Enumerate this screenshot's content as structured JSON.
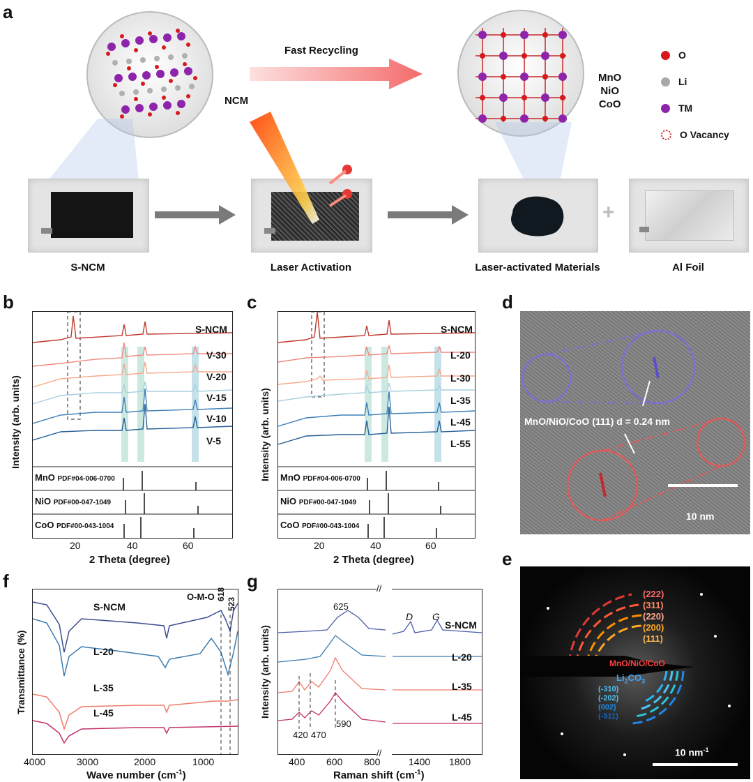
{
  "panel_a": {
    "label": "a",
    "ncm_label": "NCM",
    "fast_recycling": "Fast Recycling",
    "oxides": [
      "MnO",
      "NiO",
      "CoO"
    ],
    "legend": [
      {
        "label": "O",
        "color": "#d7191c"
      },
      {
        "label": "Li",
        "color": "#a8a8a8"
      },
      {
        "label": "TM",
        "color": "#8e24aa"
      },
      {
        "label": "O Vacancy",
        "color": "#c62828"
      }
    ],
    "steps": [
      "S-NCM",
      "Laser Activation",
      "Laser-activated Materials",
      "Al Foil"
    ]
  },
  "panel_b": {
    "label": "b",
    "ylabel": "Intensity (arb. units)",
    "xlabel": "2 Theta (degree)",
    "xticks": [
      "20",
      "40",
      "60"
    ],
    "series": [
      "S-NCM",
      "V-30",
      "V-20",
      "V-15",
      "V-10",
      "V-5"
    ],
    "refs": [
      {
        "name": "MnO",
        "pdf": "PDF#04-006-0700"
      },
      {
        "name": "NiO",
        "pdf": "PDF#00-047-1049"
      },
      {
        "name": "CoO",
        "pdf": "PDF#00-043-1004"
      }
    ]
  },
  "panel_c": {
    "label": "c",
    "ylabel": "Intensity (arb. units)",
    "xlabel": "2 Theta (degree)",
    "xticks": [
      "20",
      "40",
      "60"
    ],
    "series": [
      "S-NCM",
      "L-20",
      "L-30",
      "L-35",
      "L-45",
      "L-55"
    ],
    "refs": [
      {
        "name": "MnO",
        "pdf": "PDF#04-006-0700"
      },
      {
        "name": "NiO",
        "pdf": "PDF#00-047-1049"
      },
      {
        "name": "CoO",
        "pdf": "PDF#00-043-1004"
      }
    ]
  },
  "panel_d": {
    "label": "d",
    "annotation": "MnO/NiO/CoO  (111)  d = 0.24 nm",
    "scalebar": "10 nm"
  },
  "panel_e": {
    "label": "e",
    "rings_top": [
      "(222)",
      "(311)",
      "(220)",
      "(200)",
      "(111)"
    ],
    "phase": "MnO/NiO/CoO",
    "li2co3": "Li",
    "li2co3_sub": "2",
    "li2co3_end": "CO",
    "li2co3_sub2": "3",
    "rings_bottom": [
      "(-310)",
      "(-202)",
      "(002)",
      "(-511)"
    ],
    "scalebar": "10 nm",
    "scalebar_sup": "-1"
  },
  "panel_f": {
    "label": "f",
    "ylabel": "Transmittance (%)",
    "xlabel": "Wave number (cm",
    "xlabel_sup": "-1",
    "xlabel_end": ")",
    "xticks": [
      "4000",
      "3000",
      "2000",
      "1000"
    ],
    "series": [
      "S-NCM",
      "L-20",
      "L-35",
      "L-45"
    ],
    "annot": "O-M-O",
    "peaks": [
      "618",
      "523"
    ]
  },
  "panel_g": {
    "label": "g",
    "ylabel": "Intensity (arb. units)",
    "xlabel": "Raman shift (cm",
    "xlabel_sup": "-1",
    "xlabel_end": ")",
    "xticks": [
      "400",
      "600",
      "800",
      "1400",
      "1800"
    ],
    "series": [
      "S-NCM",
      "L-20",
      "L-35",
      "L-45"
    ],
    "peaks": [
      "625",
      "420",
      "470",
      "590"
    ],
    "bands": [
      "D",
      "G"
    ]
  },
  "chart_data": [
    {
      "type": "line",
      "panel": "b",
      "xlabel": "2 Theta (degree)",
      "ylabel": "Intensity (arb. units)",
      "series": [
        {
          "name": "S-NCM"
        },
        {
          "name": "V-30"
        },
        {
          "name": "V-20"
        },
        {
          "name": "V-15"
        },
        {
          "name": "V-10"
        },
        {
          "name": "V-5"
        }
      ],
      "reference_peaks_2theta": {
        "MnO": [
          35,
          41,
          60
        ],
        "NiO": [
          37,
          43,
          63
        ],
        "CoO": [
          36,
          42,
          61
        ]
      }
    },
    {
      "type": "line",
      "panel": "c",
      "xlabel": "2 Theta (degree)",
      "ylabel": "Intensity (arb. units)",
      "series": [
        {
          "name": "S-NCM"
        },
        {
          "name": "L-20"
        },
        {
          "name": "L-30"
        },
        {
          "name": "L-35"
        },
        {
          "name": "L-45"
        },
        {
          "name": "L-55"
        }
      ]
    },
    {
      "type": "line",
      "panel": "f",
      "xlabel": "Wave number (cm-1)",
      "ylabel": "Transmittance (%)",
      "series": [
        {
          "name": "S-NCM"
        },
        {
          "name": "L-20"
        },
        {
          "name": "L-35"
        },
        {
          "name": "L-45"
        }
      ],
      "annotated_peaks": [
        618,
        523
      ]
    },
    {
      "type": "line",
      "panel": "g",
      "xlabel": "Raman shift (cm-1)",
      "ylabel": "Intensity (arb. units)",
      "series": [
        {
          "name": "S-NCM"
        },
        {
          "name": "L-20"
        },
        {
          "name": "L-35"
        },
        {
          "name": "L-45"
        }
      ],
      "annotated_peaks": [
        420,
        470,
        590,
        625
      ]
    }
  ]
}
